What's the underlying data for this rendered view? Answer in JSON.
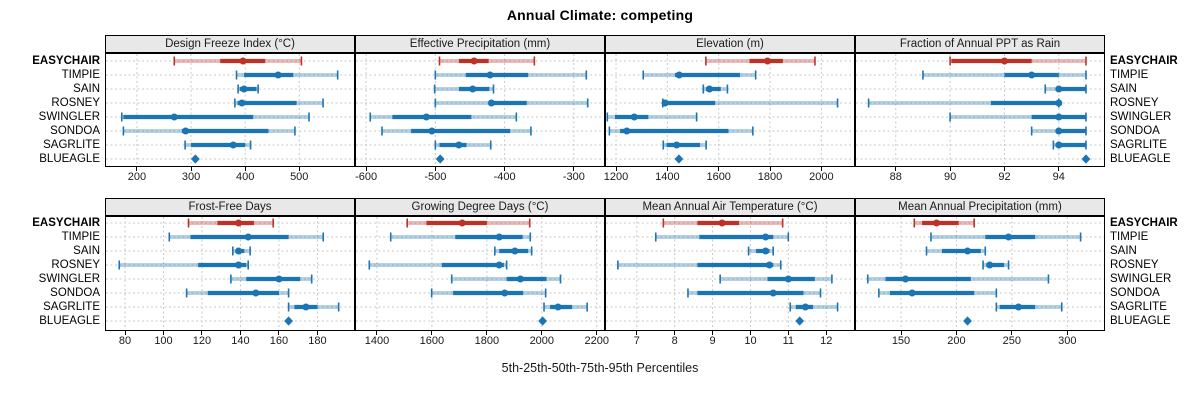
{
  "title": "Annual Climate: competing",
  "xlabel": "5th-25th-50th-75th-95th Percentiles",
  "percentiles": [
    "5th",
    "25th",
    "50th",
    "75th",
    "95th"
  ],
  "stations": [
    "EASYCHAIR",
    "TIMPIE",
    "SAIN",
    "ROSNEY",
    "SWINGLER",
    "SONDOA",
    "SAGRLITE",
    "BLUEAGLE"
  ],
  "highlight_station": "EASYCHAIR",
  "colors": {
    "highlight": "#be3126",
    "series": "#1b74b4",
    "grid": "#c9c9c9",
    "header_bg": "#e8e8e8",
    "border": "#000000"
  },
  "chart_data": [
    {
      "type": "dotplot-percentile",
      "title": "Design Freeze Index (°C)",
      "ticks": [
        200,
        300,
        400,
        500
      ],
      "domain": [
        141,
        603
      ],
      "series": [
        {
          "name": "EASYCHAIR",
          "values": [
            269,
            354,
            396,
            437,
            504
          ]
        },
        {
          "name": "TIMPIE",
          "values": [
            384,
            398,
            461,
            489,
            571
          ]
        },
        {
          "name": "SAIN",
          "values": [
            387,
            390,
            398,
            421,
            424
          ]
        },
        {
          "name": "ROSNEY",
          "values": [
            381,
            386,
            394,
            495,
            544
          ]
        },
        {
          "name": "SWINGLER",
          "values": [
            172,
            175,
            269,
            415,
            518
          ]
        },
        {
          "name": "SONDOA",
          "values": [
            175,
            283,
            290,
            443,
            492
          ]
        },
        {
          "name": "SAGRLITE",
          "values": [
            289,
            300,
            378,
            400,
            410
          ]
        },
        {
          "name": "BLUEAGLE",
          "values": [
            308
          ]
        }
      ]
    },
    {
      "type": "dotplot-percentile",
      "title": "Effective Precipitation (mm)",
      "ticks": [
        -600,
        -500,
        -400,
        -300
      ],
      "domain": [
        -616,
        -255
      ],
      "series": [
        {
          "name": "EASYCHAIR",
          "values": [
            -494,
            -466,
            -444,
            -423,
            -357
          ]
        },
        {
          "name": "TIMPIE",
          "values": [
            -500,
            -456,
            -421,
            -366,
            -282
          ]
        },
        {
          "name": "SAIN",
          "values": [
            -501,
            -466,
            -446,
            -422,
            -416
          ]
        },
        {
          "name": "ROSNEY",
          "values": [
            -500,
            -423,
            -419,
            -368,
            -280
          ]
        },
        {
          "name": "SWINGLER",
          "values": [
            -594,
            -562,
            -513,
            -448,
            -383
          ]
        },
        {
          "name": "SONDOA",
          "values": [
            -577,
            -535,
            -505,
            -392,
            -362
          ]
        },
        {
          "name": "SAGRLITE",
          "values": [
            -500,
            -494,
            -466,
            -455,
            -420
          ]
        },
        {
          "name": "BLUEAGLE",
          "values": [
            -493
          ]
        }
      ]
    },
    {
      "type": "dotplot-percentile",
      "title": "Elevation (m)",
      "ticks": [
        1200,
        1400,
        1600,
        1800,
        2000
      ],
      "domain": [
        1157,
        2131
      ],
      "series": [
        {
          "name": "EASYCHAIR",
          "values": [
            1550,
            1720,
            1790,
            1850,
            1975
          ]
        },
        {
          "name": "TIMPIE",
          "values": [
            1306,
            1430,
            1446,
            1683,
            1744
          ]
        },
        {
          "name": "SAIN",
          "values": [
            1540,
            1551,
            1564,
            1608,
            1634
          ]
        },
        {
          "name": "ROSNEY",
          "values": [
            1382,
            1387,
            1391,
            1586,
            2063
          ]
        },
        {
          "name": "SWINGLER",
          "values": [
            1166,
            1196,
            1271,
            1326,
            1514
          ]
        },
        {
          "name": "SONDOA",
          "values": [
            1174,
            1216,
            1242,
            1638,
            1733
          ]
        },
        {
          "name": "SAGRLITE",
          "values": [
            1384,
            1397,
            1436,
            1527,
            1551
          ]
        },
        {
          "name": "BLUEAGLE",
          "values": [
            1445
          ]
        }
      ]
    },
    {
      "type": "dotplot-percentile",
      "title": "Fraction of Annual PPT as Rain",
      "ticks": [
        88,
        90,
        92,
        94
      ],
      "domain": [
        86.5,
        95.7
      ],
      "series": [
        {
          "name": "EASYCHAIR",
          "values": [
            90,
            90.05,
            92,
            93,
            95
          ]
        },
        {
          "name": "TIMPIE",
          "values": [
            89,
            92,
            93,
            94,
            95
          ]
        },
        {
          "name": "SAIN",
          "values": [
            93.5,
            93.9,
            94,
            95,
            95
          ]
        },
        {
          "name": "ROSNEY",
          "values": [
            87,
            91.5,
            94,
            94,
            94
          ]
        },
        {
          "name": "SWINGLER",
          "values": [
            90,
            93,
            94,
            95,
            95
          ]
        },
        {
          "name": "SONDOA",
          "values": [
            93,
            94,
            94,
            95,
            95
          ]
        },
        {
          "name": "SAGRLITE",
          "values": [
            93.8,
            94,
            94,
            95,
            95
          ]
        },
        {
          "name": "BLUEAGLE",
          "values": [
            95
          ]
        }
      ]
    },
    {
      "type": "dotplot-percentile",
      "title": "Frost-Free Days",
      "ticks": [
        80,
        100,
        120,
        140,
        160,
        180
      ],
      "domain": [
        69.6,
        199.5
      ],
      "series": [
        {
          "name": "EASYCHAIR",
          "values": [
            113,
            128,
            139,
            147,
            157
          ]
        },
        {
          "name": "TIMPIE",
          "values": [
            103,
            114,
            144,
            165,
            183
          ]
        },
        {
          "name": "SAIN",
          "values": [
            136,
            138,
            139,
            142,
            145
          ]
        },
        {
          "name": "ROSNEY",
          "values": [
            77,
            118,
            139,
            143,
            144
          ]
        },
        {
          "name": "SWINGLER",
          "values": [
            135,
            143,
            160,
            171,
            177
          ]
        },
        {
          "name": "SONDOA",
          "values": [
            112,
            123,
            148,
            160,
            165
          ]
        },
        {
          "name": "SAGRLITE",
          "values": [
            165,
            168,
            174,
            180,
            191
          ]
        },
        {
          "name": "BLUEAGLE",
          "values": [
            165
          ]
        }
      ]
    },
    {
      "type": "dotplot-percentile",
      "title": "Growing Degree Days (°C)",
      "ticks": [
        1400,
        1600,
        1800,
        2000,
        2200
      ],
      "domain": [
        1320,
        2230
      ],
      "series": [
        {
          "name": "EASYCHAIR",
          "values": [
            1510,
            1580,
            1710,
            1800,
            1956
          ]
        },
        {
          "name": "TIMPIE",
          "values": [
            1450,
            1685,
            1845,
            1930,
            1958
          ]
        },
        {
          "name": "SAIN",
          "values": [
            1829,
            1845,
            1902,
            1950,
            1963
          ]
        },
        {
          "name": "ROSNEY",
          "values": [
            1372,
            1636,
            1845,
            1862,
            1872
          ]
        },
        {
          "name": "SWINGLER",
          "values": [
            1672,
            1872,
            1922,
            2017,
            2068
          ]
        },
        {
          "name": "SONDOA",
          "values": [
            1599,
            1677,
            1865,
            1932,
            2014
          ]
        },
        {
          "name": "SAGRLITE",
          "values": [
            2008,
            2030,
            2059,
            2110,
            2165
          ]
        },
        {
          "name": "BLUEAGLE",
          "values": [
            2003
          ]
        }
      ]
    },
    {
      "type": "dotplot-percentile",
      "title": "Mean Annual Air Temperature (°C)",
      "ticks": [
        7,
        8,
        9,
        10,
        11,
        12
      ],
      "domain": [
        6.16,
        12.76
      ],
      "series": [
        {
          "name": "EASYCHAIR",
          "values": [
            7.7,
            8.6,
            9.25,
            9.7,
            10.85
          ]
        },
        {
          "name": "TIMPIE",
          "values": [
            7.5,
            8.65,
            10.4,
            10.6,
            11.0
          ]
        },
        {
          "name": "SAIN",
          "values": [
            9.95,
            10.15,
            10.4,
            10.5,
            10.6
          ]
        },
        {
          "name": "ROSNEY",
          "values": [
            6.5,
            8.6,
            10.5,
            10.6,
            10.8
          ]
        },
        {
          "name": "SWINGLER",
          "values": [
            9.2,
            10.45,
            11.0,
            11.7,
            12.15
          ]
        },
        {
          "name": "SONDOA",
          "values": [
            8.35,
            8.6,
            10.6,
            11.4,
            11.85
          ]
        },
        {
          "name": "SAGRLITE",
          "values": [
            11.05,
            11.2,
            11.45,
            11.65,
            12.3
          ]
        },
        {
          "name": "BLUEAGLE",
          "values": [
            11.3
          ]
        }
      ]
    },
    {
      "type": "dotplot-percentile",
      "title": "Mean Annual Precipitation (mm)",
      "ticks": [
        150,
        200,
        250,
        300
      ],
      "domain": [
        108.5,
        334
      ],
      "series": [
        {
          "name": "EASYCHAIR",
          "values": [
            162,
            169,
            182,
            202,
            216
          ]
        },
        {
          "name": "TIMPIE",
          "values": [
            177,
            226,
            247,
            271,
            312
          ]
        },
        {
          "name": "SAIN",
          "values": [
            173,
            187,
            210,
            222,
            226
          ]
        },
        {
          "name": "ROSNEY",
          "values": [
            224,
            227,
            230,
            243,
            247
          ]
        },
        {
          "name": "SWINGLER",
          "values": [
            120,
            136,
            154,
            213,
            283
          ]
        },
        {
          "name": "SONDOA",
          "values": [
            130,
            140,
            160,
            216,
            236
          ]
        },
        {
          "name": "SAGRLITE",
          "values": [
            236,
            239,
            256,
            271,
            295
          ]
        },
        {
          "name": "BLUEAGLE",
          "values": [
            210
          ]
        }
      ]
    }
  ]
}
